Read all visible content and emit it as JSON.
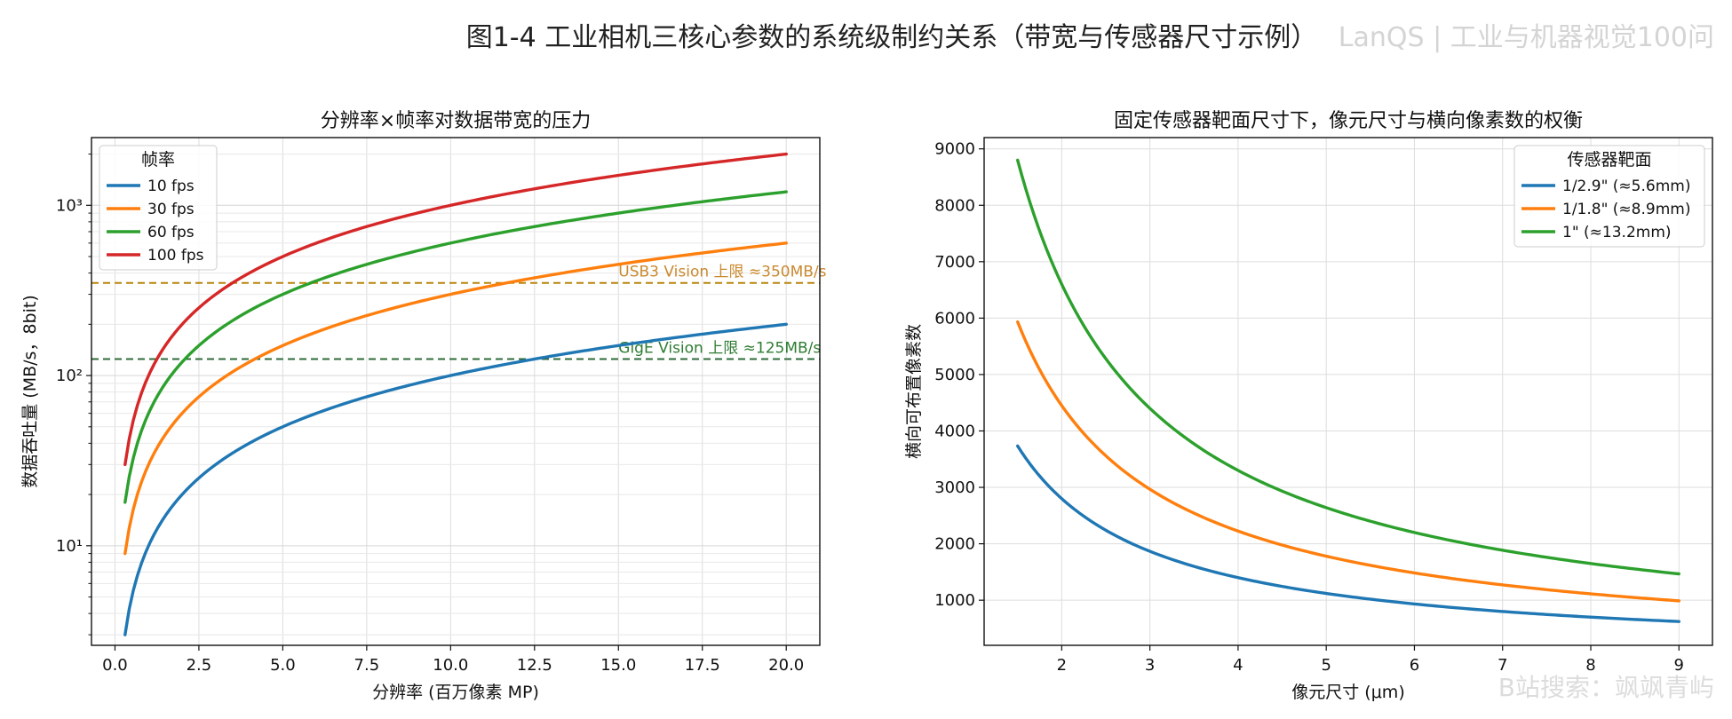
{
  "figure_title": "图1-4 工业相机三核心参数的系统级制约关系（带宽与传感器尺寸示例）",
  "watermark_top": "LanQS | 工业与机器视觉100问",
  "watermark_bottom": "B站搜索：飒飒青屿",
  "colors": {
    "blue": "#1f77b4",
    "orange": "#ff7f0e",
    "green": "#2ca02c",
    "red": "#d62728",
    "usb3_line": "#b8860b",
    "usb3_text": "#c9892e",
    "gige_line": "#2e6b3a",
    "gige_text": "#2e7d32"
  },
  "chart_data": [
    {
      "type": "line",
      "title": "分辨率×帧率对数据带宽的压力",
      "xlabel": "分辨率 (百万像素 MP)",
      "ylabel": "数据吞吐量 (MB/s，8bit)",
      "xlim": [
        -0.7,
        21.0
      ],
      "ylim": [
        2.6,
        2500
      ],
      "yscale": "log",
      "xticks": [
        0,
        2.5,
        5,
        7.5,
        10,
        12.5,
        15,
        17.5,
        20
      ],
      "xtick_labels": [
        "0.0",
        "2.5",
        "5.0",
        "7.5",
        "10.0",
        "12.5",
        "15.0",
        "17.5",
        "20.0"
      ],
      "yticks": [
        10,
        100,
        1000
      ],
      "ytick_labels": [
        "10¹",
        "10²",
        "10³"
      ],
      "grid": true,
      "legend_title": "帧率",
      "legend_position": "upper-left",
      "x": [
        0.3,
        0.5,
        1,
        1.5,
        2,
        3,
        4,
        5,
        6,
        8,
        10,
        12.5,
        15,
        17.5,
        20
      ],
      "series": [
        {
          "name": "10 fps",
          "color": "#1f77b4",
          "values": [
            3,
            5,
            10,
            15,
            20,
            30,
            40,
            50,
            60,
            80,
            100,
            125,
            150,
            175,
            200
          ]
        },
        {
          "name": "30 fps",
          "color": "#ff7f0e",
          "values": [
            9,
            15,
            30,
            45,
            60,
            90,
            120,
            150,
            180,
            240,
            300,
            375,
            450,
            525,
            600
          ]
        },
        {
          "name": "60 fps",
          "color": "#2ca02c",
          "values": [
            18,
            30,
            60,
            90,
            120,
            180,
            240,
            300,
            360,
            480,
            600,
            750,
            900,
            1050,
            1200
          ]
        },
        {
          "name": "100 fps",
          "color": "#d62728",
          "values": [
            30,
            50,
            100,
            150,
            200,
            300,
            400,
            500,
            600,
            800,
            1000,
            1250,
            1500,
            1750,
            2000
          ]
        }
      ],
      "reference_lines": [
        {
          "y": 350,
          "label": "USB3 Vision 上限 ≈350MB/s",
          "color": "#b8860b",
          "text_color": "#c9892e",
          "label_x": 15.0
        },
        {
          "y": 125,
          "label": "GigE Vision 上限 ≈125MB/s",
          "color": "#2e6b3a",
          "text_color": "#2e7d32",
          "label_x": 15.0
        }
      ]
    },
    {
      "type": "line",
      "title": "固定传感器靶面尺寸下，像元尺寸与横向像素数的权衡",
      "xlabel": "像元尺寸 (μm)",
      "ylabel": "横向可布置像素数",
      "xlim": [
        1.12,
        9.38
      ],
      "ylim": [
        200,
        9200
      ],
      "yscale": "linear",
      "xticks": [
        2,
        3,
        4,
        5,
        6,
        7,
        8,
        9
      ],
      "xtick_labels": [
        "2",
        "3",
        "4",
        "5",
        "6",
        "7",
        "8",
        "9"
      ],
      "yticks": [
        1000,
        2000,
        3000,
        4000,
        5000,
        6000,
        7000,
        8000,
        9000
      ],
      "ytick_labels": [
        "1000",
        "2000",
        "3000",
        "4000",
        "5000",
        "6000",
        "7000",
        "8000",
        "9000"
      ],
      "grid": true,
      "legend_title": "传感器靶面",
      "legend_position": "upper-right",
      "x": [
        1.5,
        1.75,
        2,
        2.5,
        3,
        3.5,
        4,
        4.5,
        5,
        5.5,
        6,
        6.5,
        7,
        7.5,
        8,
        8.5,
        9
      ],
      "series": [
        {
          "name": "1/2.9\" (≈5.6mm)",
          "color": "#1f77b4",
          "values": [
            3733,
            3200,
            2800,
            2240,
            1867,
            1600,
            1400,
            1244,
            1120,
            1018,
            933,
            862,
            800,
            747,
            700,
            659,
            622
          ]
        },
        {
          "name": "1/1.8\" (≈8.9mm)",
          "color": "#ff7f0e",
          "values": [
            5933,
            5086,
            4450,
            3560,
            2967,
            2543,
            2225,
            1978,
            1780,
            1618,
            1483,
            1369,
            1271,
            1187,
            1113,
            1047,
            989
          ]
        },
        {
          "name": "1\" (≈13.2mm)",
          "color": "#2ca02c",
          "values": [
            8800,
            7543,
            6600,
            5280,
            4400,
            3771,
            3300,
            2933,
            2640,
            2400,
            2200,
            2031,
            1886,
            1760,
            1650,
            1553,
            1467
          ]
        }
      ]
    }
  ]
}
